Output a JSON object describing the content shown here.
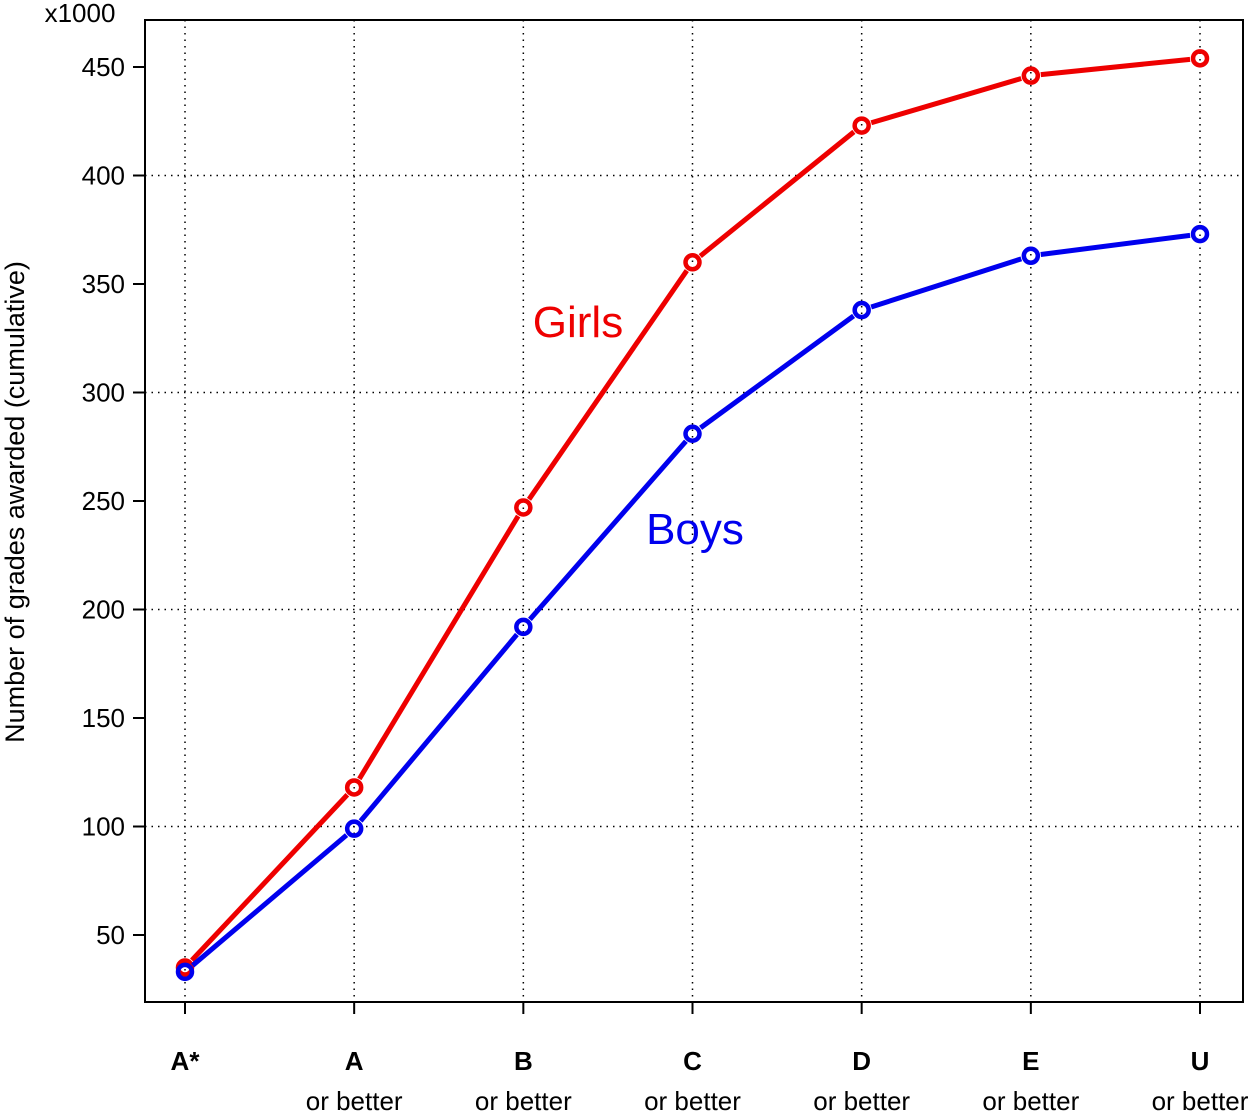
{
  "chart_data": {
    "type": "line",
    "ylabel": "Number of grades awarded (cumulative)",
    "y_multiplier": "x1000",
    "ylim": [
      25,
      460
    ],
    "y_ticks": [
      50,
      100,
      150,
      200,
      250,
      300,
      350,
      400,
      450
    ],
    "grid": true,
    "categories": [
      {
        "main": "A*",
        "sub": ""
      },
      {
        "main": "A",
        "sub": "or better"
      },
      {
        "main": "B",
        "sub": "or better"
      },
      {
        "main": "C",
        "sub": "or better"
      },
      {
        "main": "D",
        "sub": "or better"
      },
      {
        "main": "E",
        "sub": "or better"
      },
      {
        "main": "U",
        "sub": "or better"
      }
    ],
    "series": [
      {
        "name": "Girls",
        "color": "#ee0000",
        "values": [
          35,
          118,
          247,
          360,
          423,
          446,
          454
        ]
      },
      {
        "name": "Boys",
        "color": "#0000ee",
        "values": [
          33,
          99,
          192,
          281,
          338,
          363,
          373
        ]
      }
    ]
  }
}
